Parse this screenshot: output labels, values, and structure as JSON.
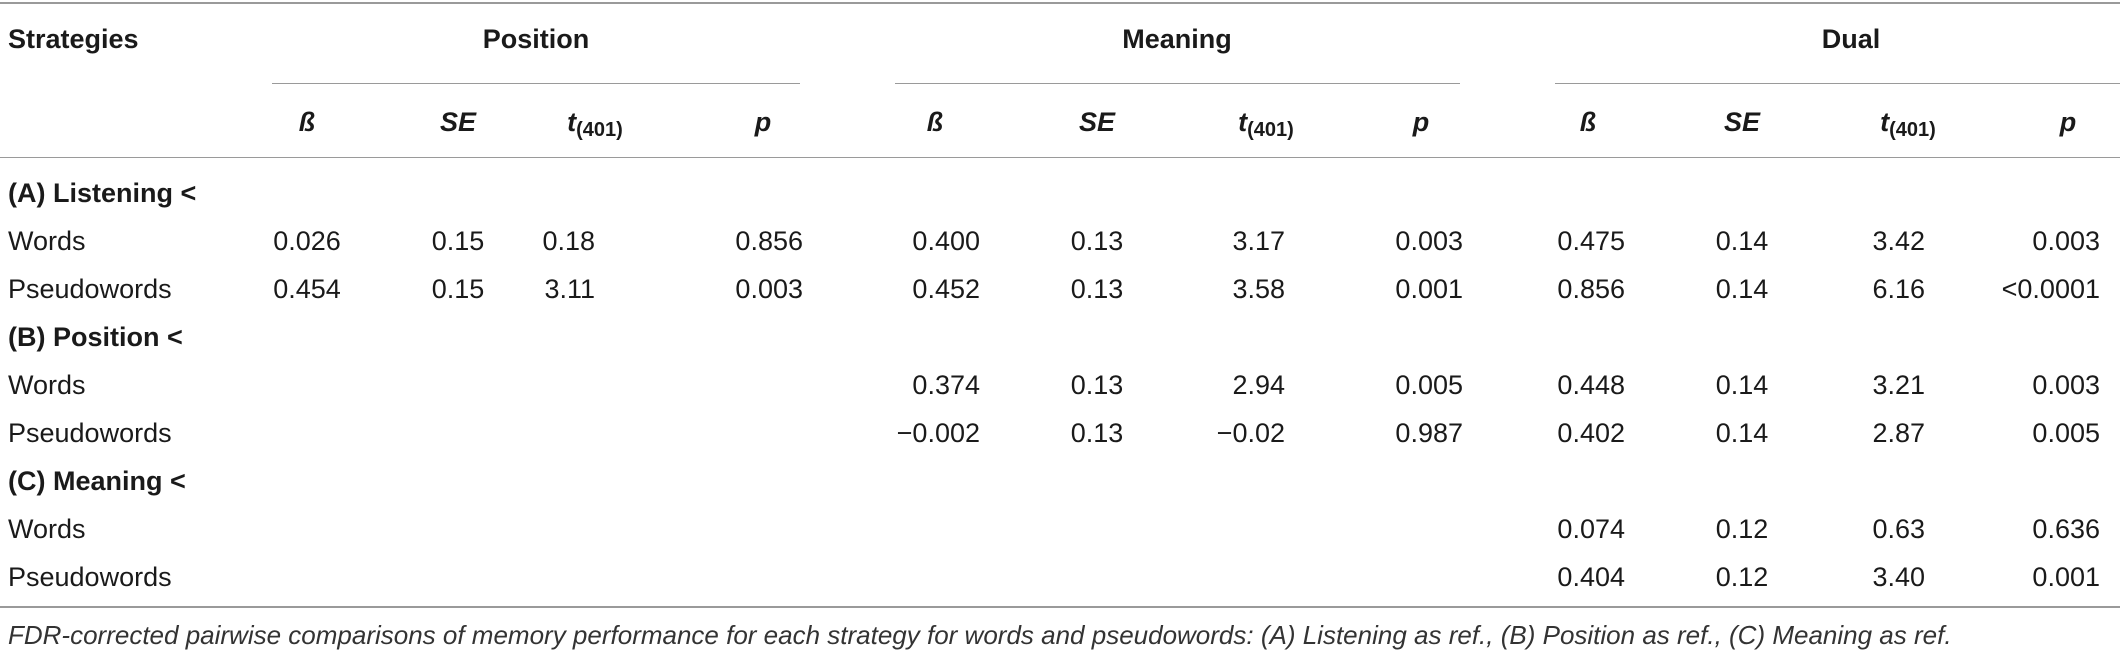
{
  "header": {
    "strategies": "Strategies",
    "groups": [
      "Position",
      "Meaning",
      "Dual"
    ],
    "stats": {
      "beta": "ß",
      "se": "SE",
      "t": "t",
      "t_sub": "(401)",
      "p": "p"
    }
  },
  "sections": [
    {
      "title": "(A) Listening <",
      "rows": [
        {
          "label": "Words",
          "position": [
            "0.026",
            "0.15",
            "0.18",
            "0.856"
          ],
          "meaning": [
            "0.400",
            "0.13",
            "3.17",
            "0.003"
          ],
          "dual": [
            "0.475",
            "0.14",
            "3.42",
            "0.003"
          ]
        },
        {
          "label": "Pseudowords",
          "position": [
            "0.454",
            "0.15",
            "3.11",
            "0.003"
          ],
          "meaning": [
            "0.452",
            "0.13",
            "3.58",
            "0.001"
          ],
          "dual": [
            "0.856",
            "0.14",
            "6.16",
            "<0.0001"
          ]
        }
      ]
    },
    {
      "title": "(B) Position <",
      "rows": [
        {
          "label": "Words",
          "meaning": [
            "0.374",
            "0.13",
            "2.94",
            "0.005"
          ],
          "dual": [
            "0.448",
            "0.14",
            "3.21",
            "0.003"
          ]
        },
        {
          "label": "Pseudowords",
          "meaning": [
            "−0.002",
            "0.13",
            "−0.02",
            "0.987"
          ],
          "dual": [
            "0.402",
            "0.14",
            "2.87",
            "0.005"
          ]
        }
      ]
    },
    {
      "title": "(C) Meaning <",
      "rows": [
        {
          "label": "Words",
          "dual": [
            "0.074",
            "0.12",
            "0.63",
            "0.636"
          ]
        },
        {
          "label": "Pseudowords",
          "dual": [
            "0.404",
            "0.12",
            "3.40",
            "0.001"
          ]
        }
      ]
    }
  ],
  "caption": "FDR-corrected pairwise comparisons of memory performance for each strategy for words and pseudowords: (A) Listening as ref., (B) Position as ref., (C) Meaning as ref."
}
